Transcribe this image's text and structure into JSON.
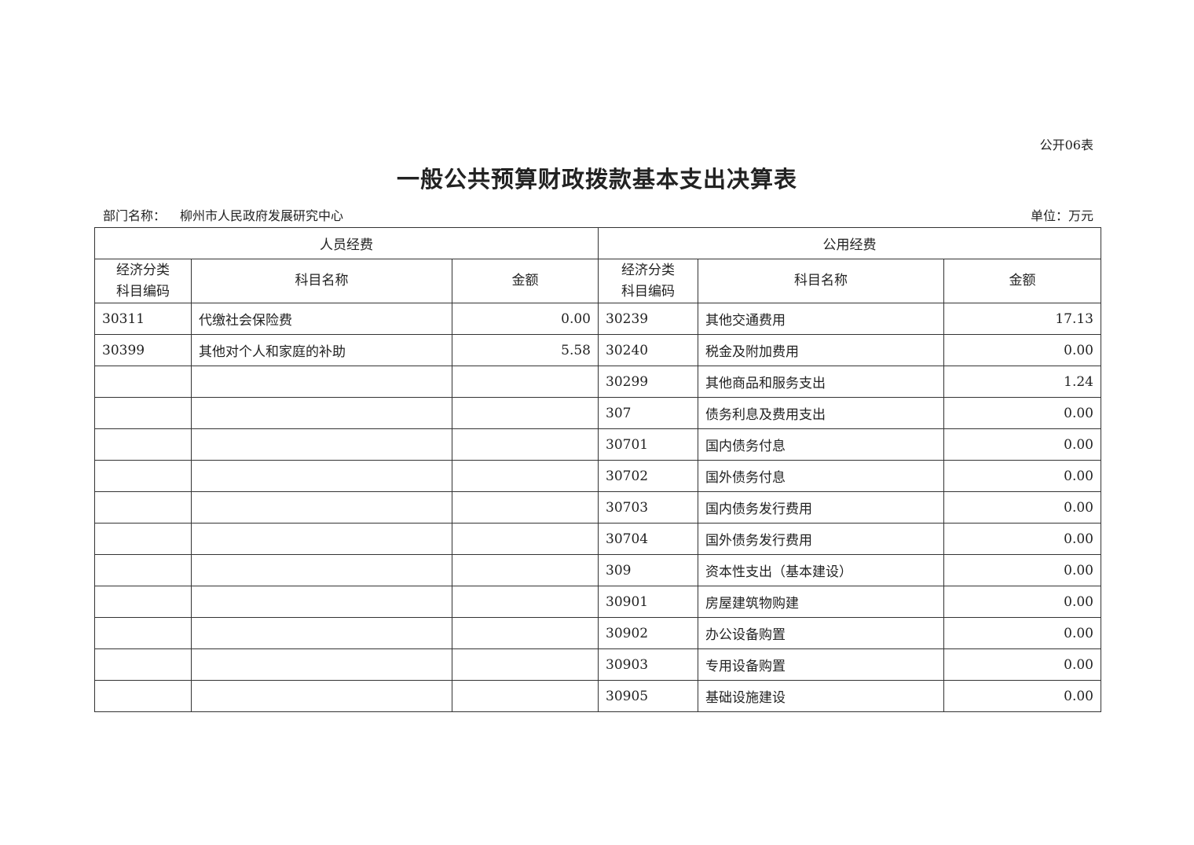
{
  "form_number": "公开06表",
  "title": "一般公共预算财政拨款基本支出决算表",
  "department_label": "部门名称：",
  "department_name": "柳州市人民政府发展研究中心",
  "unit_label": "单位：万元",
  "table": {
    "group_headers": [
      "人员经费",
      "公用经费"
    ],
    "column_headers": {
      "code_line1": "经济分类",
      "code_line2": "科目编码",
      "name": "科目名称",
      "amount": "金额"
    },
    "rows": [
      {
        "p_code": "30311",
        "p_name": "代缴社会保险费",
        "p_amount": "0.00",
        "g_code": "30239",
        "g_name": "其他交通费用",
        "g_amount": "17.13"
      },
      {
        "p_code": "30399",
        "p_name": "其他对个人和家庭的补助",
        "p_amount": "5.58",
        "g_code": "30240",
        "g_name": "税金及附加费用",
        "g_amount": "0.00"
      },
      {
        "p_code": "",
        "p_name": "",
        "p_amount": "",
        "g_code": "30299",
        "g_name": "其他商品和服务支出",
        "g_amount": "1.24"
      },
      {
        "p_code": "",
        "p_name": "",
        "p_amount": "",
        "g_code": "307",
        "g_name": "债务利息及费用支出",
        "g_amount": "0.00"
      },
      {
        "p_code": "",
        "p_name": "",
        "p_amount": "",
        "g_code": "30701",
        "g_name": "国内债务付息",
        "g_amount": "0.00"
      },
      {
        "p_code": "",
        "p_name": "",
        "p_amount": "",
        "g_code": "30702",
        "g_name": "国外债务付息",
        "g_amount": "0.00"
      },
      {
        "p_code": "",
        "p_name": "",
        "p_amount": "",
        "g_code": "30703",
        "g_name": "国内债务发行费用",
        "g_amount": "0.00"
      },
      {
        "p_code": "",
        "p_name": "",
        "p_amount": "",
        "g_code": "30704",
        "g_name": "国外债务发行费用",
        "g_amount": "0.00"
      },
      {
        "p_code": "",
        "p_name": "",
        "p_amount": "",
        "g_code": "309",
        "g_name": "资本性支出（基本建设）",
        "g_amount": "0.00"
      },
      {
        "p_code": "",
        "p_name": "",
        "p_amount": "",
        "g_code": "30901",
        "g_name": "房屋建筑物购建",
        "g_amount": "0.00"
      },
      {
        "p_code": "",
        "p_name": "",
        "p_amount": "",
        "g_code": "30902",
        "g_name": "办公设备购置",
        "g_amount": "0.00"
      },
      {
        "p_code": "",
        "p_name": "",
        "p_amount": "",
        "g_code": "30903",
        "g_name": "专用设备购置",
        "g_amount": "0.00"
      },
      {
        "p_code": "",
        "p_name": "",
        "p_amount": "",
        "g_code": "30905",
        "g_name": "基础设施建设",
        "g_amount": "0.00"
      }
    ]
  }
}
